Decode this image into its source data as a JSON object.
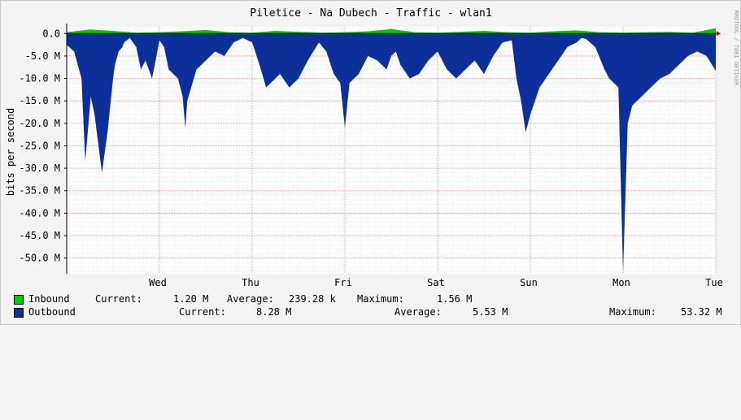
{
  "chart_data": {
    "type": "area",
    "title": "Piletice - Na Dubech - Traffic - wlan1",
    "ylabel": "bits per second",
    "watermark": "RRDTOOL / TOBI OETIKER",
    "ylim": [
      -53.5,
      1.5
    ],
    "yticks": [
      "0.0",
      "-5.0 M",
      "-10.0 M",
      "-15.0 M",
      "-20.0 M",
      "-25.0 M",
      "-30.0 M",
      "-35.0 M",
      "-40.0 M",
      "-45.0 M",
      "-50.0 M"
    ],
    "ytick_values": [
      0,
      -5,
      -10,
      -15,
      -20,
      -25,
      -30,
      -35,
      -40,
      -45,
      -50
    ],
    "xticks": [
      "Wed",
      "Thu",
      "Fri",
      "Sat",
      "Sun",
      "Mon",
      "Tue"
    ],
    "xtick_positions": [
      1,
      2,
      3,
      4,
      5,
      6,
      7
    ],
    "xlim": [
      0,
      7
    ],
    "grid": true,
    "colors": {
      "inbound": "#00cc00",
      "outbound": "#0c2f9a",
      "major_grid": "#e0a8a8",
      "minor_grid": "#eeeeee"
    },
    "series": [
      {
        "name": "Inbound",
        "color": "#00cc00",
        "x": [
          0,
          0.25,
          0.5,
          0.75,
          1,
          1.25,
          1.5,
          1.75,
          2,
          2.25,
          2.5,
          2.75,
          3,
          3.25,
          3.5,
          3.75,
          4,
          4.25,
          4.5,
          4.75,
          5,
          5.25,
          5.5,
          5.75,
          6,
          6.25,
          6.5,
          6.75,
          7
        ],
        "values": [
          0.3,
          0.9,
          0.6,
          0.2,
          0.3,
          0.5,
          0.8,
          0.3,
          0.2,
          0.6,
          0.4,
          0.2,
          0.3,
          0.5,
          1.0,
          0.3,
          0.2,
          0.4,
          0.6,
          0.3,
          0.2,
          0.5,
          0.7,
          0.3,
          0.2,
          0.3,
          0.4,
          0.2,
          1.2
        ]
      },
      {
        "name": "Outbound",
        "color": "#0c2f9a",
        "x": [
          0,
          0.08,
          0.16,
          0.2,
          0.26,
          0.3,
          0.38,
          0.44,
          0.5,
          0.52,
          0.56,
          0.6,
          0.62,
          0.68,
          0.75,
          0.8,
          0.85,
          0.92,
          0.95,
          1.0,
          1.05,
          1.1,
          1.2,
          1.25,
          1.28,
          1.3,
          1.4,
          1.5,
          1.6,
          1.7,
          1.8,
          1.9,
          2.0,
          2.08,
          2.15,
          2.25,
          2.3,
          2.4,
          2.5,
          2.6,
          2.72,
          2.8,
          2.88,
          2.95,
          3.0,
          3.05,
          3.15,
          3.25,
          3.35,
          3.45,
          3.5,
          3.55,
          3.6,
          3.7,
          3.8,
          3.9,
          4.0,
          4.1,
          4.2,
          4.3,
          4.4,
          4.5,
          4.6,
          4.7,
          4.8,
          4.85,
          4.9,
          4.95,
          5.0,
          5.1,
          5.2,
          5.3,
          5.4,
          5.5,
          5.55,
          5.6,
          5.7,
          5.8,
          5.85,
          5.95,
          6.0,
          6.05,
          6.1,
          6.2,
          6.3,
          6.4,
          6.5,
          6.6,
          6.7,
          6.8,
          6.9,
          7.0
        ],
        "values": [
          -2.5,
          -4,
          -10,
          -28.5,
          -14,
          -18,
          -31,
          -22,
          -10,
          -7,
          -4,
          -3,
          -2,
          -1,
          -3,
          -8,
          -6,
          -10,
          -7,
          -1.5,
          -3,
          -8,
          -10,
          -14,
          -21,
          -15,
          -8,
          -6,
          -4,
          -5,
          -2,
          -1,
          -2,
          -7,
          -12,
          -10,
          -9,
          -12,
          -10,
          -6,
          -2,
          -4,
          -9,
          -11,
          -21,
          -11,
          -9,
          -5,
          -6,
          -8,
          -5,
          -4,
          -7,
          -10,
          -9,
          -6,
          -4,
          -8,
          -10,
          -8,
          -6,
          -9,
          -5,
          -2,
          -1.5,
          -10,
          -15,
          -22,
          -18,
          -12,
          -9,
          -6,
          -3,
          -2,
          -1,
          -1.2,
          -3,
          -8,
          -10,
          -12,
          -53.3,
          -20,
          -16,
          -14,
          -12,
          -10,
          -9,
          -7,
          -5,
          -4,
          -5,
          -8.3
        ]
      }
    ]
  },
  "legend": {
    "inbound": {
      "label": "Inbound",
      "current_label": "Current:",
      "current": "1.20 M",
      "average_label": "Average:",
      "average": "239.28 k",
      "maximum_label": "Maximum:",
      "maximum": "1.56 M"
    },
    "outbound": {
      "label": "Outbound",
      "current_label": "Current:",
      "current": "8.28 M",
      "average_label": "Average:",
      "average": "5.53 M",
      "maximum_label": "Maximum:",
      "maximum": "53.32 M"
    }
  }
}
